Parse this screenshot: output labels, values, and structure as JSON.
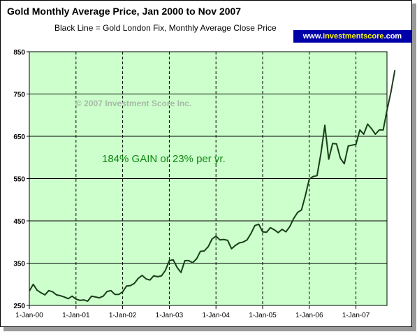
{
  "header": {
    "title": "Gold Monthly Average Price, Jan 2000 to Nov 2007",
    "subtitle": "Black Line = Gold London Fix, Monthly Average Close Price",
    "badge_prefix": "www.",
    "badge_highlight": "investmentscore",
    "badge_suffix": ".com"
  },
  "colors": {
    "plot_background": "#ccffcc",
    "line": "#1a3d1a",
    "gain_text": "#118811",
    "watermark": "#a7b9a7",
    "badge_background": "#0000a8",
    "badge_highlight": "#ffff00"
  },
  "chart_data": {
    "type": "line",
    "title": "Gold Monthly Average Price, Jan 2000 to Nov 2007",
    "subtitle": "Black Line = Gold London Fix, Monthly Average Close Price",
    "xlabel": "",
    "ylabel": "",
    "ylim": [
      250,
      850
    ],
    "yticks": [
      250,
      350,
      450,
      550,
      650,
      750,
      850
    ],
    "xlim": [
      "2000-01",
      "2007-11"
    ],
    "xticks": [
      "1-Jan-00",
      "1-Jan-01",
      "1-Jan-02",
      "1-Jan-03",
      "1-Jan-04",
      "1-Jan-05",
      "1-Jan-06",
      "1-Jan-07"
    ],
    "grid": {
      "horizontal": "solid",
      "vertical": "dashed"
    },
    "annotations": [
      "© 2007 Investment Score Inc.",
      "184% GAIN or 23% per yr."
    ],
    "series": [
      {
        "values": [
          284,
          300,
          286,
          280,
          275,
          285,
          282,
          275,
          273,
          270,
          266,
          272,
          265,
          262,
          263,
          260,
          272,
          270,
          268,
          272,
          283,
          285,
          276,
          276,
          282,
          296,
          297,
          302,
          314,
          321,
          313,
          310,
          320,
          318,
          320,
          333,
          356,
          358,
          340,
          328,
          356,
          356,
          351,
          360,
          378,
          379,
          389,
          407,
          414,
          405,
          406,
          404,
          384,
          392,
          398,
          400,
          405,
          420,
          439,
          442,
          424,
          423,
          434,
          429,
          422,
          430,
          424,
          437,
          456,
          470,
          476,
          510,
          549,
          555,
          557,
          610,
          676,
          596,
          633,
          632,
          598,
          585,
          627,
          629,
          631,
          665,
          655,
          679,
          668,
          655,
          665,
          665,
          712,
          755,
          806
        ]
      }
    ]
  }
}
